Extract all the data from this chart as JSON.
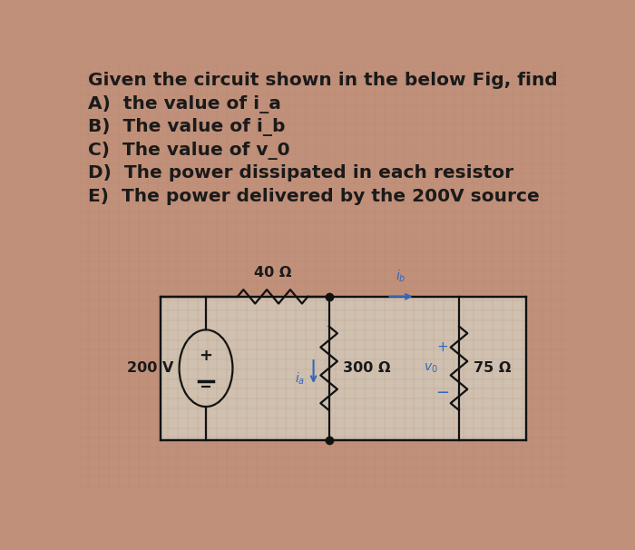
{
  "bg_color": "#c0907a",
  "circuit_bg": "#d4c4b8",
  "text_color": "#1a1a1a",
  "title_lines": [
    "Given the circuit shown in the below Fig, find",
    "A)  the value of i_a",
    "B)  The value of i_b",
    "C)  The value of v_0",
    "D)  The power dissipated in each resistor",
    "E)  The power delivered by the 200V source"
  ],
  "wire_color": "#111111",
  "component_color": "#111111",
  "annotation_color": "#3366bb",
  "font_bold": true,
  "text_fontsize": 14.5,
  "circuit_fontsize": 11.5
}
